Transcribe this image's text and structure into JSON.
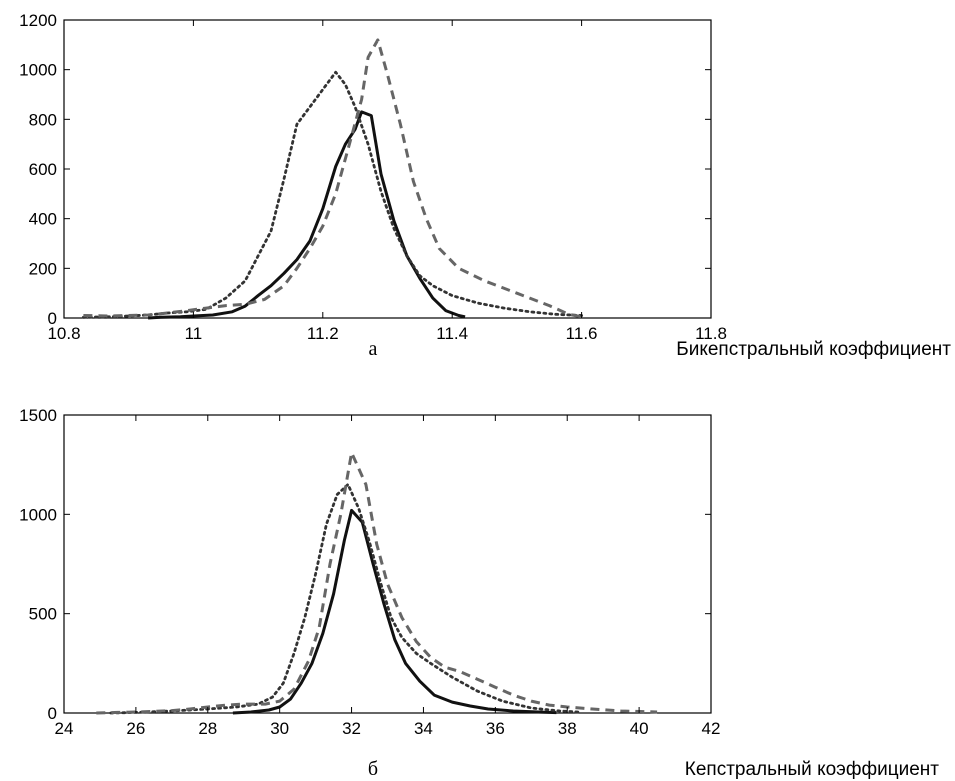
{
  "chart_data": [
    {
      "type": "line",
      "panel_label": "а",
      "xlabel": "Бикепстральный коэффициент",
      "ylabel": "",
      "xlim": [
        10.8,
        11.8
      ],
      "ylim": [
        0,
        1200
      ],
      "xticks": [
        "10.8",
        "11",
        "11.2",
        "11.4",
        "11.6",
        "11.8"
      ],
      "yticks": [
        "0",
        "200",
        "400",
        "600",
        "800",
        "1000",
        "1200"
      ],
      "grid": false,
      "series": [
        {
          "style": "solid",
          "color": "#111111",
          "points": [
            [
              10.93,
              0
            ],
            [
              10.95,
              3
            ],
            [
              10.98,
              5
            ],
            [
              11.0,
              8
            ],
            [
              11.03,
              12
            ],
            [
              11.06,
              25
            ],
            [
              11.08,
              48
            ],
            [
              11.1,
              90
            ],
            [
              11.12,
              130
            ],
            [
              11.14,
              180
            ],
            [
              11.16,
              235
            ],
            [
              11.18,
              310
            ],
            [
              11.2,
              440
            ],
            [
              11.22,
              610
            ],
            [
              11.235,
              700
            ],
            [
              11.25,
              760
            ],
            [
              11.26,
              830
            ],
            [
              11.275,
              815
            ],
            [
              11.29,
              580
            ],
            [
              11.31,
              390
            ],
            [
              11.33,
              250
            ],
            [
              11.35,
              160
            ],
            [
              11.37,
              80
            ],
            [
              11.39,
              30
            ],
            [
              11.41,
              10
            ],
            [
              11.42,
              5
            ]
          ]
        },
        {
          "style": "dotted",
          "color": "#333333",
          "points": [
            [
              10.83,
              3
            ],
            [
              10.87,
              5
            ],
            [
              10.9,
              8
            ],
            [
              10.93,
              12
            ],
            [
              10.96,
              20
            ],
            [
              10.99,
              25
            ],
            [
              11.02,
              35
            ],
            [
              11.05,
              80
            ],
            [
              11.08,
              150
            ],
            [
              11.1,
              250
            ],
            [
              11.12,
              350
            ],
            [
              11.14,
              560
            ],
            [
              11.16,
              780
            ],
            [
              11.18,
              850
            ],
            [
              11.2,
              920
            ],
            [
              11.22,
              990
            ],
            [
              11.235,
              940
            ],
            [
              11.25,
              850
            ],
            [
              11.27,
              700
            ],
            [
              11.29,
              510
            ],
            [
              11.31,
              360
            ],
            [
              11.33,
              250
            ],
            [
              11.35,
              170
            ],
            [
              11.37,
              130
            ],
            [
              11.4,
              90
            ],
            [
              11.44,
              60
            ],
            [
              11.48,
              40
            ],
            [
              11.52,
              25
            ],
            [
              11.56,
              15
            ],
            [
              11.6,
              10
            ]
          ]
        },
        {
          "style": "dashed",
          "color": "#666666",
          "points": [
            [
              10.83,
              10
            ],
            [
              10.87,
              8
            ],
            [
              10.9,
              10
            ],
            [
              10.93,
              12
            ],
            [
              10.96,
              20
            ],
            [
              10.99,
              30
            ],
            [
              11.02,
              40
            ],
            [
              11.05,
              50
            ],
            [
              11.08,
              55
            ],
            [
              11.11,
              75
            ],
            [
              11.14,
              130
            ],
            [
              11.16,
              200
            ],
            [
              11.18,
              280
            ],
            [
              11.2,
              370
            ],
            [
              11.22,
              500
            ],
            [
              11.24,
              690
            ],
            [
              11.26,
              880
            ],
            [
              11.27,
              1050
            ],
            [
              11.285,
              1120
            ],
            [
              11.3,
              980
            ],
            [
              11.32,
              780
            ],
            [
              11.34,
              550
            ],
            [
              11.36,
              400
            ],
            [
              11.38,
              280
            ],
            [
              11.41,
              200
            ],
            [
              11.45,
              150
            ],
            [
              11.5,
              100
            ],
            [
              11.55,
              50
            ],
            [
              11.58,
              15
            ],
            [
              11.6,
              5
            ]
          ]
        }
      ]
    },
    {
      "type": "line",
      "panel_label": "б",
      "xlabel": "Кепстральный коэффициент",
      "ylabel": "",
      "xlim": [
        24,
        42
      ],
      "ylim": [
        0,
        1500
      ],
      "xticks": [
        "24",
        "26",
        "28",
        "30",
        "32",
        "34",
        "36",
        "38",
        "40",
        "42"
      ],
      "yticks": [
        "0",
        "500",
        "1000",
        "1500"
      ],
      "grid": false,
      "series": [
        {
          "style": "solid",
          "color": "#111111",
          "points": [
            [
              28.7,
              0
            ],
            [
              29.2,
              5
            ],
            [
              29.7,
              15
            ],
            [
              30.0,
              30
            ],
            [
              30.3,
              70
            ],
            [
              30.6,
              150
            ],
            [
              30.9,
              250
            ],
            [
              31.2,
              400
            ],
            [
              31.5,
              600
            ],
            [
              31.8,
              870
            ],
            [
              32.0,
              1020
            ],
            [
              32.3,
              960
            ],
            [
              32.6,
              750
            ],
            [
              32.9,
              550
            ],
            [
              33.2,
              370
            ],
            [
              33.5,
              250
            ],
            [
              33.9,
              160
            ],
            [
              34.3,
              90
            ],
            [
              34.8,
              55
            ],
            [
              35.3,
              35
            ],
            [
              35.8,
              20
            ],
            [
              36.5,
              10
            ],
            [
              37.2,
              5
            ],
            [
              37.7,
              2
            ]
          ]
        },
        {
          "style": "dotted",
          "color": "#333333",
          "points": [
            [
              25.3,
              0
            ],
            [
              26.0,
              3
            ],
            [
              27.0,
              10
            ],
            [
              28.0,
              20
            ],
            [
              28.8,
              30
            ],
            [
              29.4,
              45
            ],
            [
              29.8,
              80
            ],
            [
              30.1,
              150
            ],
            [
              30.4,
              300
            ],
            [
              30.7,
              480
            ],
            [
              31.0,
              700
            ],
            [
              31.3,
              950
            ],
            [
              31.6,
              1100
            ],
            [
              31.9,
              1150
            ],
            [
              32.2,
              1030
            ],
            [
              32.5,
              860
            ],
            [
              32.8,
              660
            ],
            [
              33.1,
              480
            ],
            [
              33.4,
              380
            ],
            [
              33.8,
              300
            ],
            [
              34.2,
              250
            ],
            [
              34.8,
              180
            ],
            [
              35.5,
              110
            ],
            [
              36.2,
              60
            ],
            [
              37.0,
              25
            ],
            [
              37.8,
              10
            ],
            [
              38.3,
              5
            ]
          ]
        },
        {
          "style": "dashed",
          "color": "#666666",
          "points": [
            [
              24.9,
              0
            ],
            [
              25.5,
              3
            ],
            [
              26.0,
              5
            ],
            [
              26.5,
              8
            ],
            [
              27.0,
              12
            ],
            [
              27.5,
              20
            ],
            [
              28.0,
              30
            ],
            [
              28.5,
              40
            ],
            [
              29.0,
              45
            ],
            [
              29.6,
              45
            ],
            [
              30.0,
              60
            ],
            [
              30.4,
              120
            ],
            [
              30.8,
              260
            ],
            [
              31.1,
              430
            ],
            [
              31.4,
              750
            ],
            [
              31.7,
              1000
            ],
            [
              32.0,
              1310
            ],
            [
              32.4,
              1150
            ],
            [
              32.7,
              850
            ],
            [
              33.0,
              650
            ],
            [
              33.4,
              480
            ],
            [
              33.8,
              360
            ],
            [
              34.2,
              280
            ],
            [
              34.6,
              230
            ],
            [
              35.0,
              210
            ],
            [
              35.5,
              170
            ],
            [
              36.0,
              130
            ],
            [
              36.5,
              90
            ],
            [
              37.0,
              60
            ],
            [
              37.5,
              40
            ],
            [
              38.0,
              30
            ],
            [
              38.7,
              20
            ],
            [
              39.5,
              10
            ],
            [
              40.5,
              5
            ]
          ]
        }
      ]
    }
  ]
}
